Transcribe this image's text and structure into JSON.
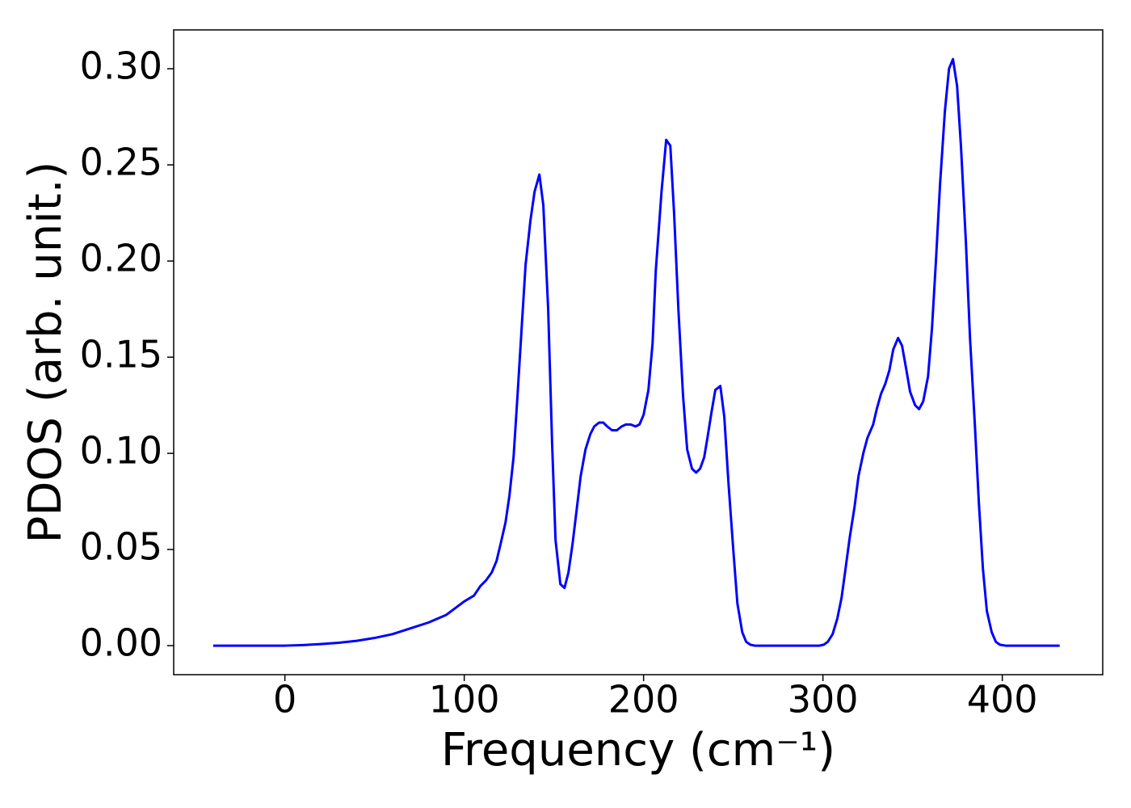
{
  "chart_data": {
    "type": "line",
    "xlabel": "Frequency (cm⁻¹)",
    "ylabel": "PDOS (arb. unit.)",
    "xlim": [
      -62,
      456
    ],
    "ylim": [
      -0.0151,
      0.3202
    ],
    "xticks": [
      0,
      100,
      200,
      300,
      400
    ],
    "yticks": [
      {
        "value": 0,
        "label": "0.00"
      },
      {
        "value": 0.05,
        "label": "0.05"
      },
      {
        "value": 0.1,
        "label": "0.10"
      },
      {
        "value": 0.15,
        "label": "0.15"
      },
      {
        "value": 0.2,
        "label": "0.20"
      },
      {
        "value": 0.25,
        "label": "0.25"
      },
      {
        "value": 0.3,
        "label": "0.30"
      }
    ],
    "x": [
      -40,
      0,
      10,
      20,
      30,
      40,
      50,
      60,
      70,
      80,
      90,
      100,
      105.4,
      109,
      112.2,
      115.3,
      118,
      120.3,
      123,
      125.2,
      127.5,
      129.7,
      132,
      134.2,
      136.9,
      139.2,
      141.9,
      144.1,
      146.8,
      149,
      150.9,
      153.6,
      155.9,
      158.1,
      160.4,
      162.6,
      164.9,
      167.6,
      170.3,
      172.5,
      175.2,
      177.5,
      179.7,
      182.4,
      185.1,
      187.8,
      190.1,
      192.8,
      195.5,
      197.7,
      200,
      202.7,
      205,
      206.8,
      210,
      212.6,
      214.9,
      217,
      219.4,
      222,
      224.3,
      227,
      229.3,
      231.5,
      233.8,
      235.6,
      237.8,
      240,
      242.8,
      245,
      247.3,
      250,
      252.3,
      255,
      257.2,
      259.5,
      262,
      298,
      300.5,
      302.7,
      305.4,
      308,
      310.4,
      312.6,
      314.9,
      317.6,
      319.8,
      322.5,
      324.8,
      328,
      330,
      332.4,
      334.7,
      337,
      339.2,
      341.9,
      344.1,
      346.4,
      348.6,
      351.4,
      353.6,
      355.9,
      358.6,
      360.8,
      363,
      365.3,
      368,
      370.3,
      372.5,
      374.8,
      377,
      379.7,
      382,
      384.7,
      386.9,
      389.2,
      391.4,
      394.1,
      396.4,
      398.6,
      401.8,
      432
    ],
    "series": [
      {
        "color": "#0000ff",
        "values": [
          0,
          0,
          0.0003,
          0.0008,
          0.0015,
          0.0025,
          0.004,
          0.006,
          0.009,
          0.012,
          0.016,
          0.023,
          0.026,
          0.031,
          0.034,
          0.038,
          0.044,
          0.053,
          0.064,
          0.078,
          0.098,
          0.13,
          0.165,
          0.198,
          0.221,
          0.236,
          0.245,
          0.229,
          0.175,
          0.105,
          0.055,
          0.032,
          0.03,
          0.038,
          0.053,
          0.07,
          0.088,
          0.102,
          0.11,
          0.114,
          0.116,
          0.116,
          0.114,
          0.112,
          0.112,
          0.114,
          0.115,
          0.115,
          0.114,
          0.115,
          0.12,
          0.133,
          0.157,
          0.195,
          0.236,
          0.263,
          0.26,
          0.225,
          0.175,
          0.13,
          0.102,
          0.092,
          0.09,
          0.092,
          0.098,
          0.108,
          0.121,
          0.133,
          0.135,
          0.119,
          0.085,
          0.05,
          0.022,
          0.007,
          0.002,
          0.0005,
          0,
          0,
          0.0005,
          0.002,
          0.006,
          0.014,
          0.025,
          0.04,
          0.056,
          0.072,
          0.088,
          0.1,
          0.108,
          0.115,
          0.123,
          0.131,
          0.136,
          0.143,
          0.154,
          0.16,
          0.156,
          0.144,
          0.132,
          0.125,
          0.123,
          0.127,
          0.14,
          0.165,
          0.2,
          0.24,
          0.278,
          0.3,
          0.305,
          0.291,
          0.259,
          0.21,
          0.16,
          0.115,
          0.075,
          0.04,
          0.018,
          0.007,
          0.002,
          0.0005,
          0,
          0
        ]
      }
    ]
  }
}
